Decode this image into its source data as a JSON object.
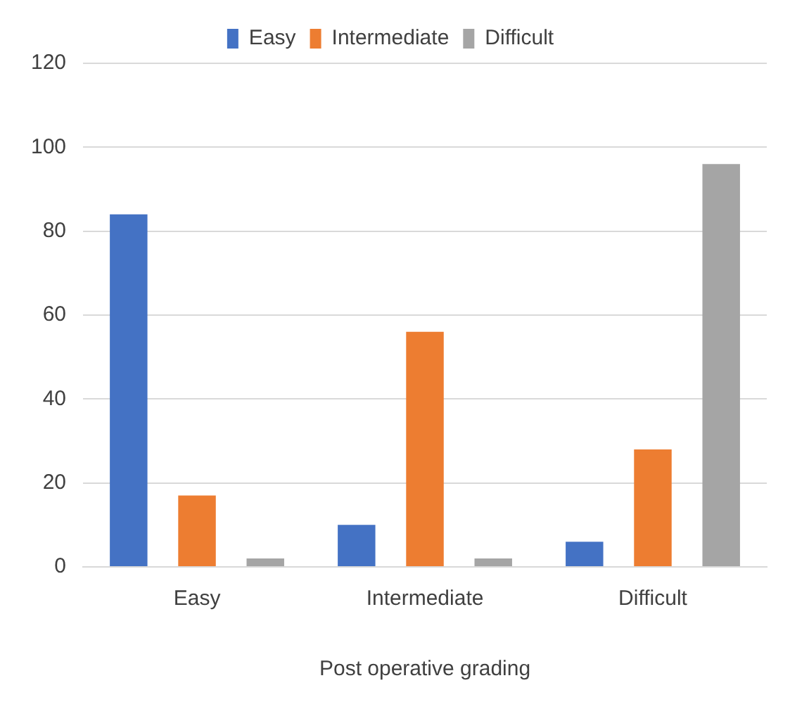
{
  "chart_data": {
    "type": "bar",
    "xlabel": "Post operative grading",
    "categories": [
      "Easy",
      "Intermediate",
      "Difficult"
    ],
    "series": [
      {
        "name": "Easy",
        "color": "#4472c4",
        "values": [
          84,
          10,
          6
        ]
      },
      {
        "name": "Intermediate",
        "color": "#ed7d31",
        "values": [
          17,
          56,
          28
        ]
      },
      {
        "name": "Difficult",
        "color": "#a5a5a5",
        "values": [
          2,
          2,
          96
        ]
      }
    ],
    "ylim": [
      0,
      120
    ],
    "yticks": [
      0,
      20,
      40,
      60,
      80,
      100,
      120
    ],
    "grid": "y",
    "legend": "top"
  }
}
